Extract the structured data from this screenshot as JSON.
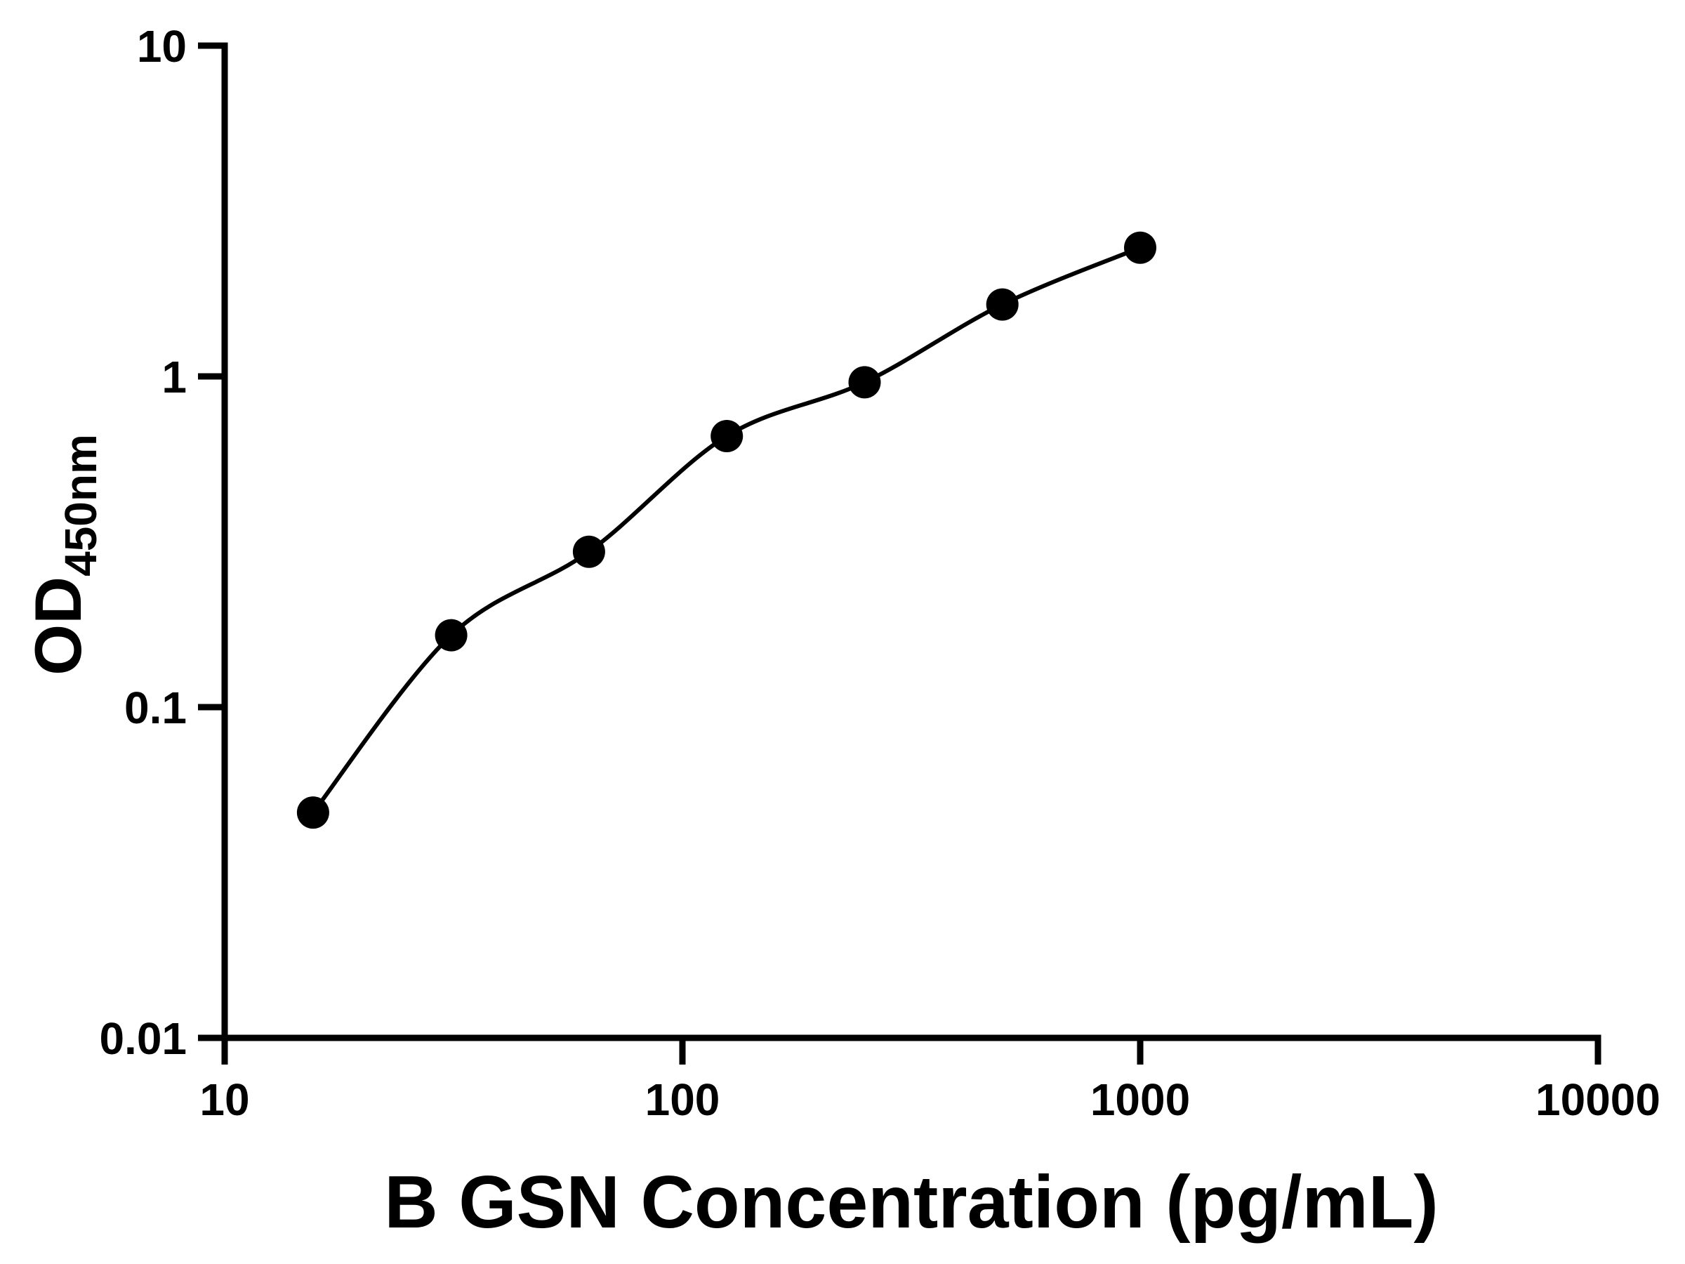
{
  "page": {
    "background": "#ffffff"
  },
  "chart_data": {
    "type": "scatter",
    "title": "",
    "xlabel": "B GSN Concentration (pg/mL)",
    "ylabel_main": "OD",
    "ylabel_subscript": "450nm",
    "x_scale": "log",
    "y_scale": "log",
    "xlim": [
      10,
      10000
    ],
    "ylim": [
      0.01,
      10
    ],
    "x_ticks": [
      10,
      100,
      1000,
      10000
    ],
    "x_tick_labels": [
      "10",
      "100",
      "1000",
      "10000"
    ],
    "y_ticks": [
      0.01,
      0.1,
      1,
      10
    ],
    "y_tick_labels": [
      "0.01",
      "0.1",
      "1",
      "10"
    ],
    "grid": false,
    "legend": "none",
    "marker": "filled-circle",
    "line": "smooth-fit-curve",
    "color": "#000000",
    "series": [
      {
        "name": "standard-curve",
        "x": [
          15.6,
          31.25,
          62.5,
          125,
          250,
          500,
          1000
        ],
        "y": [
          0.048,
          0.165,
          0.295,
          0.66,
          0.96,
          1.65,
          2.45
        ]
      }
    ]
  }
}
